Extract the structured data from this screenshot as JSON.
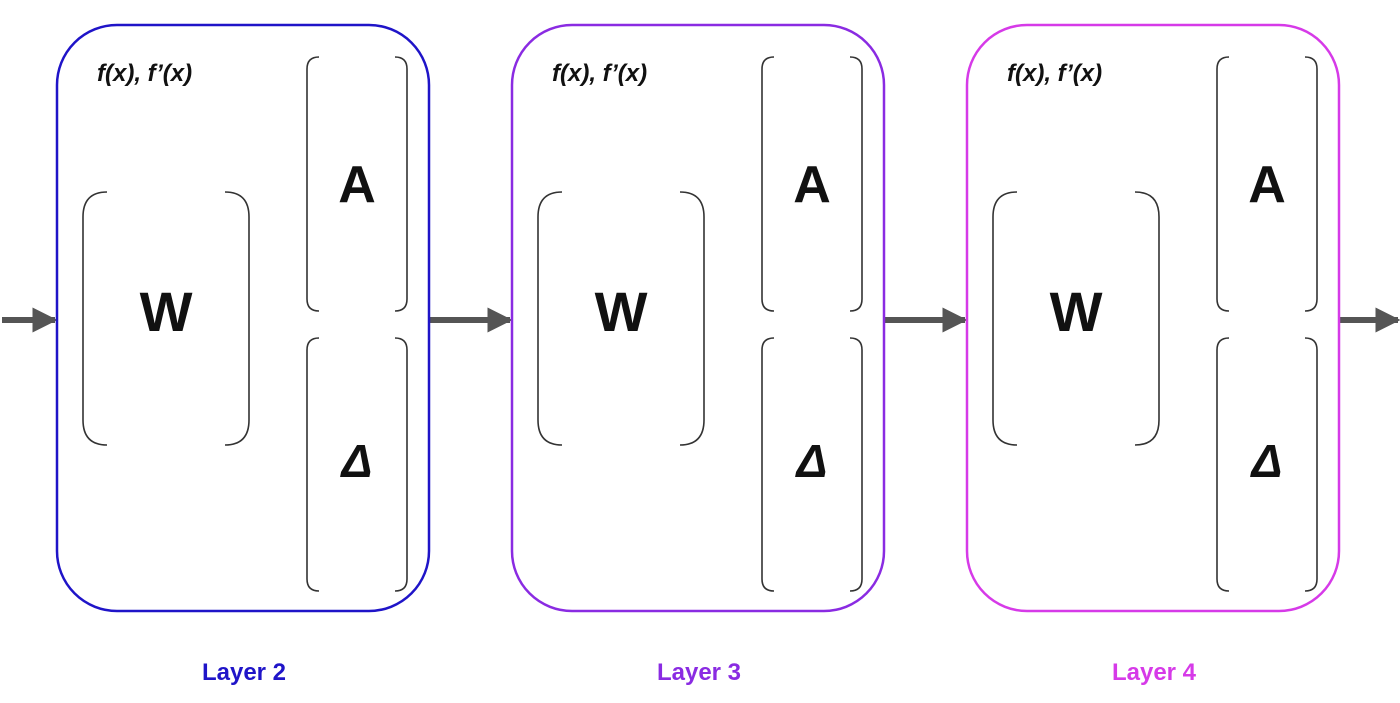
{
  "layers": [
    {
      "label": "Layer 2",
      "color": "#1f14c8",
      "func_label": "f(x), f’(x)",
      "matrix_w": "W",
      "matrix_a": "A",
      "matrix_delta": "Δ"
    },
    {
      "label": "Layer 3",
      "color": "#8a2be2",
      "func_label": "f(x), f’(x)",
      "matrix_w": "W",
      "matrix_a": "A",
      "matrix_delta": "Δ"
    },
    {
      "label": "Layer 4",
      "color": "#d63ae8",
      "func_label": "f(x), f’(x)",
      "matrix_w": "W",
      "matrix_a": "A",
      "matrix_delta": "Δ"
    }
  ],
  "arrow_color": "#555555"
}
